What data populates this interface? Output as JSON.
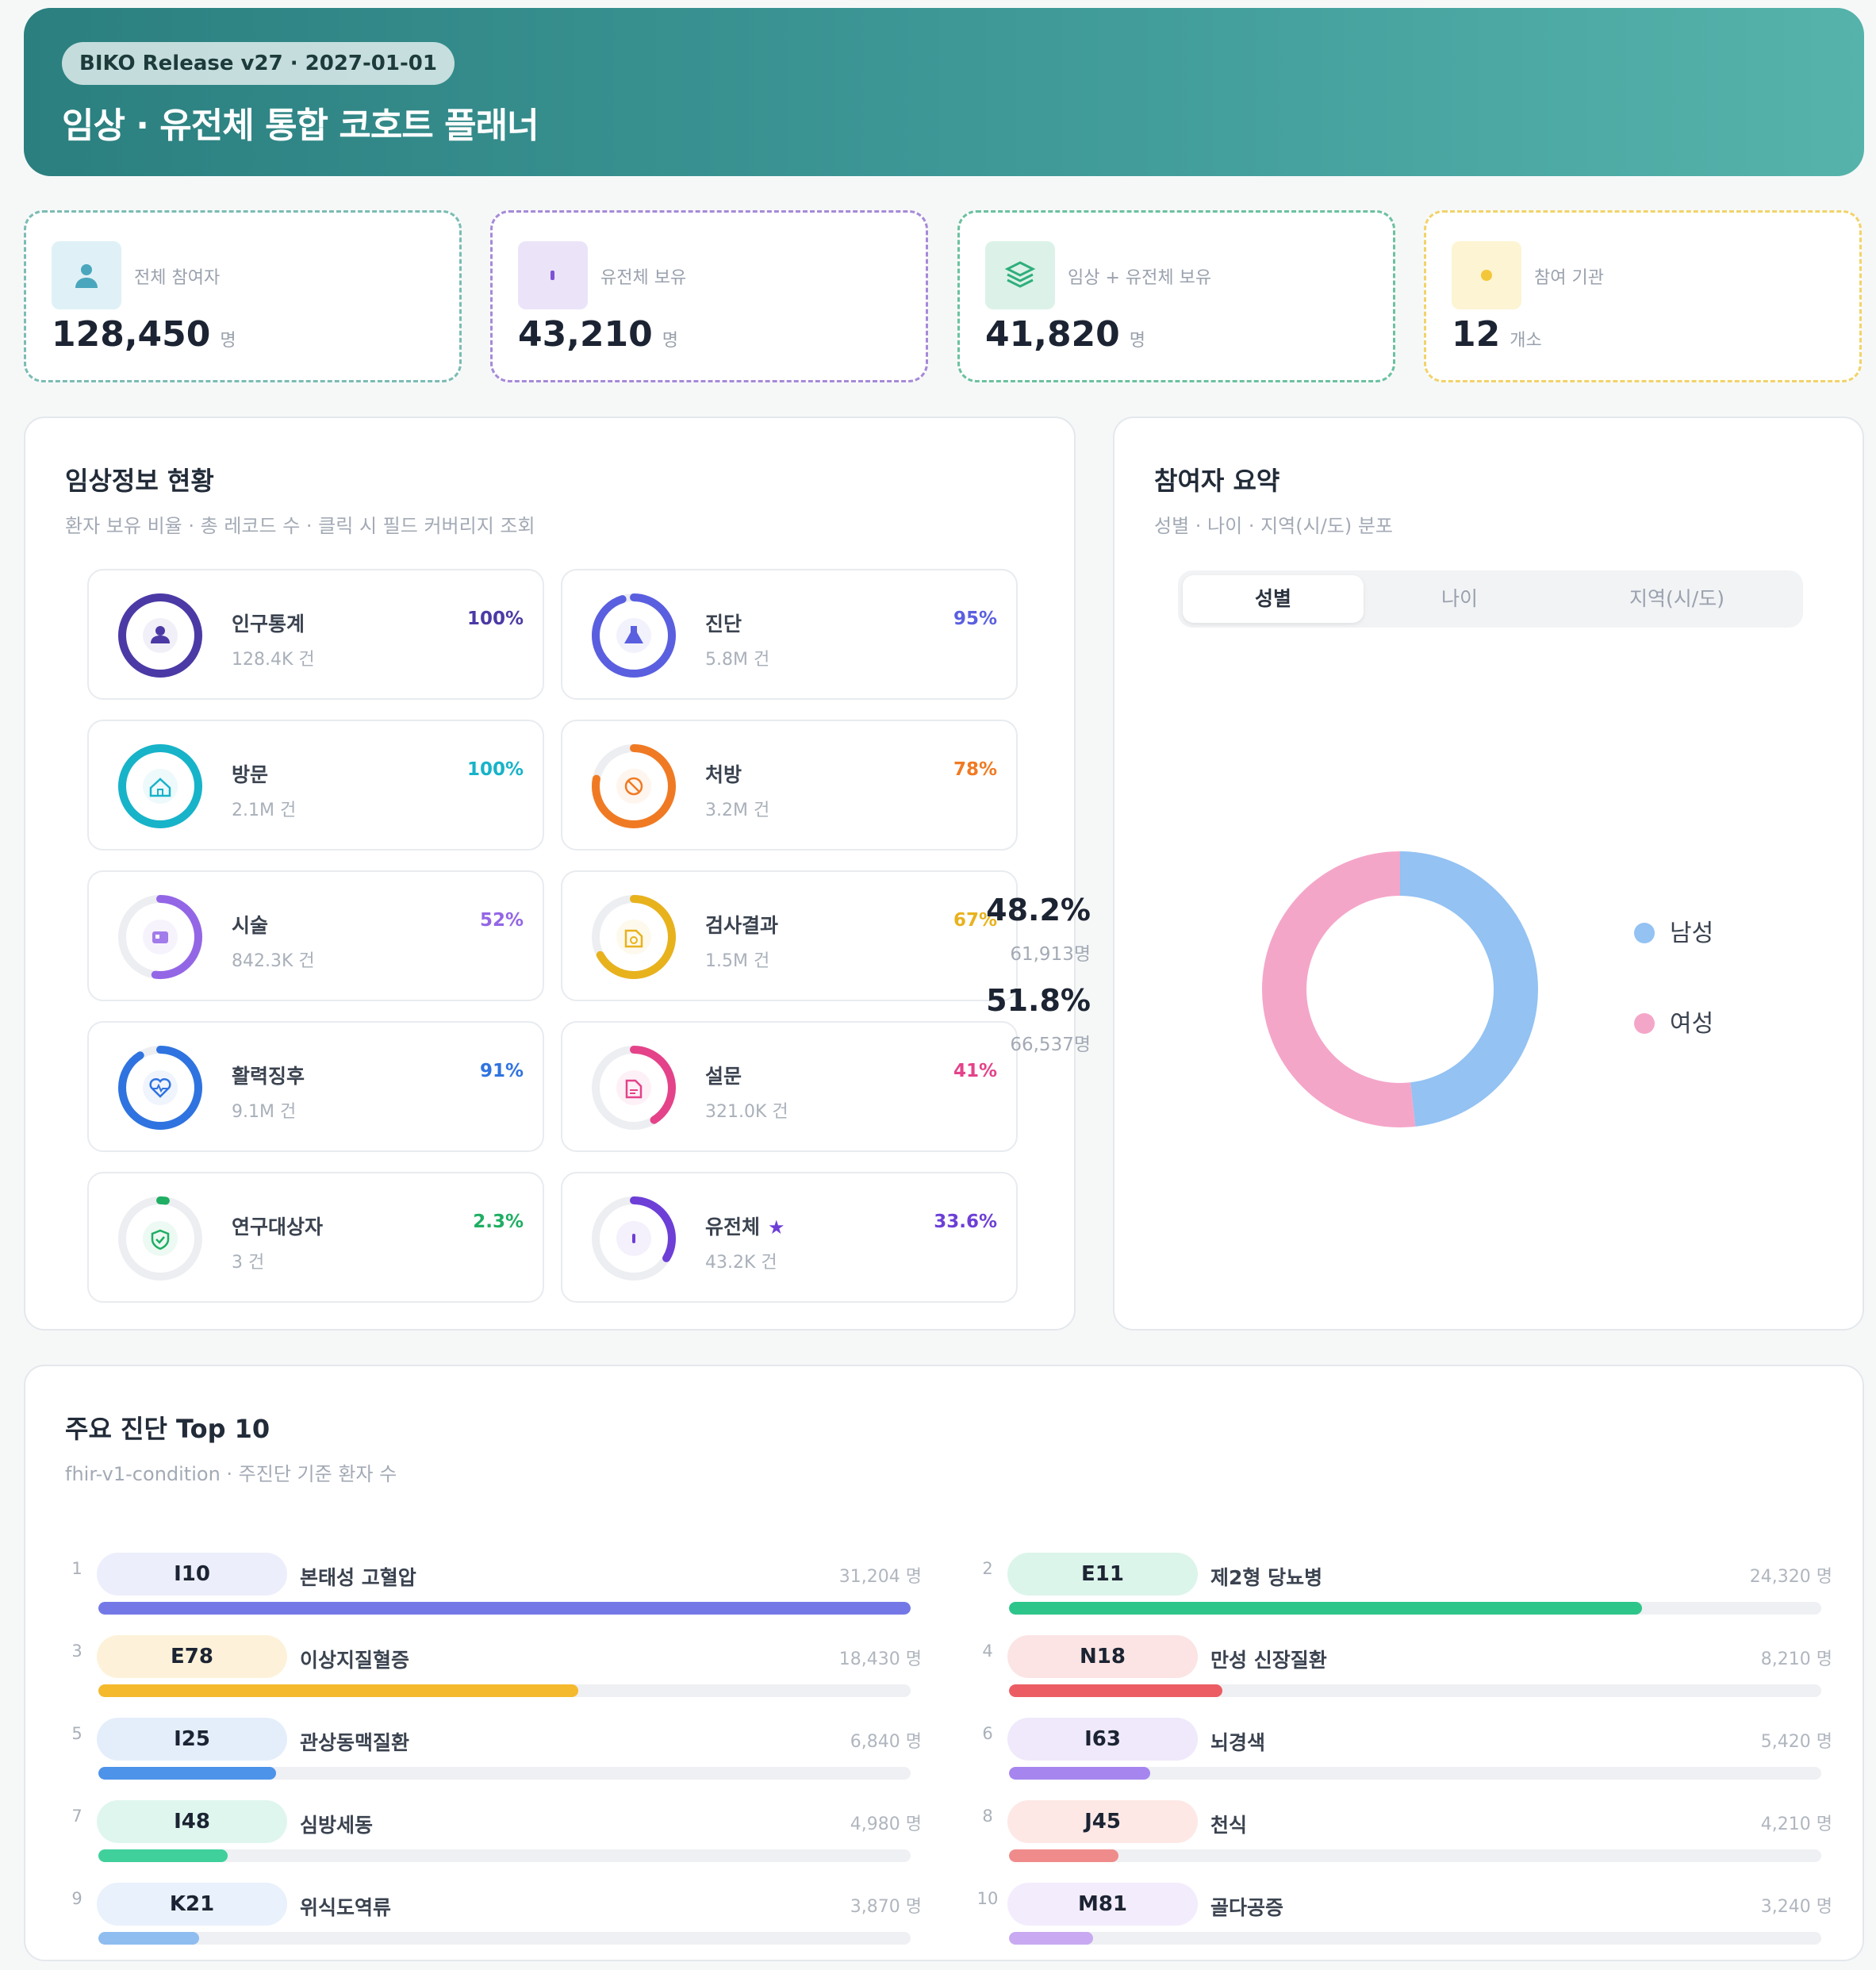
{
  "header": {
    "release": "BIKO Release v27 · 2027-01-01",
    "title": "임상 · 유전체 통합 코호트 플래너"
  },
  "stats": [
    {
      "label": "전체 참여자",
      "value": "128,450",
      "unit": "명",
      "icon": "person-icon",
      "accent": "#4aa6bd"
    },
    {
      "label": "유전체 보유",
      "value": "43,210",
      "unit": "명",
      "icon": "dna-icon",
      "accent": "#7c52d6"
    },
    {
      "label": "임상 + 유전체 보유",
      "value": "41,820",
      "unit": "명",
      "icon": "layers-icon",
      "accent": "#2fae7b"
    },
    {
      "label": "참여 기관",
      "value": "12",
      "unit": "개소",
      "icon": "building-icon",
      "accent": "#e8b72a"
    }
  ],
  "clinical": {
    "title": "임상정보 현황",
    "subtitle": "환자 보유 비율 · 총 레코드 수 · 클릭 시 필드 커버리지 조회",
    "items": [
      {
        "name": "인구통계",
        "count": "128.4K 건",
        "pct_label": "100%",
        "pct": 100,
        "color": "#4b3aa5",
        "icon": "person-icon",
        "star": ""
      },
      {
        "name": "진단",
        "count": "5.8M 건",
        "pct_label": "95%",
        "pct": 95,
        "color": "#5a5fe0",
        "icon": "flask-icon",
        "star": ""
      },
      {
        "name": "방문",
        "count": "2.1M 건",
        "pct_label": "100%",
        "pct": 100,
        "color": "#17b3c9",
        "icon": "home-icon",
        "star": ""
      },
      {
        "name": "처방",
        "count": "3.2M 건",
        "pct_label": "78%",
        "pct": 78,
        "color": "#f07a23",
        "icon": "pill-icon",
        "star": ""
      },
      {
        "name": "시술",
        "count": "842.3K 건",
        "pct_label": "52%",
        "pct": 52,
        "color": "#9366e6",
        "icon": "procedure-icon",
        "star": ""
      },
      {
        "name": "검사결과",
        "count": "1.5M 건",
        "pct_label": "67%",
        "pct": 67,
        "color": "#e8b21d",
        "icon": "lab-icon",
        "star": ""
      },
      {
        "name": "활력징후",
        "count": "9.1M 건",
        "pct_label": "91%",
        "pct": 91,
        "color": "#2f73e0",
        "icon": "heart-icon",
        "star": ""
      },
      {
        "name": "설문",
        "count": "321.0K 건",
        "pct_label": "41%",
        "pct": 41,
        "color": "#e4438a",
        "icon": "survey-icon",
        "star": ""
      },
      {
        "name": "연구대상자",
        "count": "3 건",
        "pct_label": "2.3%",
        "pct": 2.3,
        "color": "#1fae63",
        "icon": "shield-icon",
        "star": ""
      },
      {
        "name": "유전체",
        "count": "43.2K 건",
        "pct_label": "33.6%",
        "pct": 33.6,
        "color": "#6d3fd6",
        "icon": "dna-icon",
        "star": "★"
      }
    ]
  },
  "summary": {
    "title": "참여자 요약",
    "subtitle": "성별 · 나이 · 지역(시/도) 분포",
    "tabs": [
      "성별",
      "나이",
      "지역(시/도)"
    ],
    "active_tab": "성별",
    "legend": [
      {
        "label": "남성",
        "pct": "48.2%",
        "count": "61,913명",
        "color": "#93c2f3",
        "value": 48.2
      },
      {
        "label": "여성",
        "pct": "51.8%",
        "count": "66,537명",
        "color": "#f4a6c9",
        "value": 51.8
      }
    ]
  },
  "top10": {
    "title": "주요 진단 Top 10",
    "subtitle": "fhir-v1-condition · 주진단 기준 환자 수",
    "rows": [
      {
        "rank": "1",
        "code": "I10",
        "name": "본태성 고혈압",
        "count": "31,204 명",
        "value": 31204,
        "color": "#7478e6",
        "chip": "#eceefb"
      },
      {
        "rank": "2",
        "code": "E11",
        "name": "제2형 당뇨병",
        "count": "24,320 명",
        "value": 24320,
        "color": "#2ec58a",
        "chip": "#dcf5ea"
      },
      {
        "rank": "3",
        "code": "E78",
        "name": "이상지질혈증",
        "count": "18,430 명",
        "value": 18430,
        "color": "#f5b92e",
        "chip": "#fdf2d9"
      },
      {
        "rank": "4",
        "code": "N18",
        "name": "만성 신장질환",
        "count": "8,210 명",
        "value": 8210,
        "color": "#ec5d63",
        "chip": "#fce4e4"
      },
      {
        "rank": "5",
        "code": "I25",
        "name": "관상동맥질환",
        "count": "6,840 명",
        "value": 6840,
        "color": "#4d93ea",
        "chip": "#e4eefb"
      },
      {
        "rank": "6",
        "code": "I63",
        "name": "뇌경색",
        "count": "5,420 명",
        "value": 5420,
        "color": "#a686ee",
        "chip": "#efe9fb"
      },
      {
        "rank": "7",
        "code": "I48",
        "name": "심방세동",
        "count": "4,980 명",
        "value": 4980,
        "color": "#3fd09b",
        "chip": "#dff6ee"
      },
      {
        "rank": "8",
        "code": "J45",
        "name": "천식",
        "count": "4,210 명",
        "value": 4210,
        "color": "#f08b8b",
        "chip": "#fde8e6"
      },
      {
        "rank": "9",
        "code": "K21",
        "name": "위식도역류",
        "count": "3,870 명",
        "value": 3870,
        "color": "#8fbdf0",
        "chip": "#e8f1fc"
      },
      {
        "rank": "10",
        "code": "M81",
        "name": "골다공증",
        "count": "3,240 명",
        "value": 3240,
        "color": "#c9a9f2",
        "chip": "#f3ecfd"
      }
    ]
  }
}
